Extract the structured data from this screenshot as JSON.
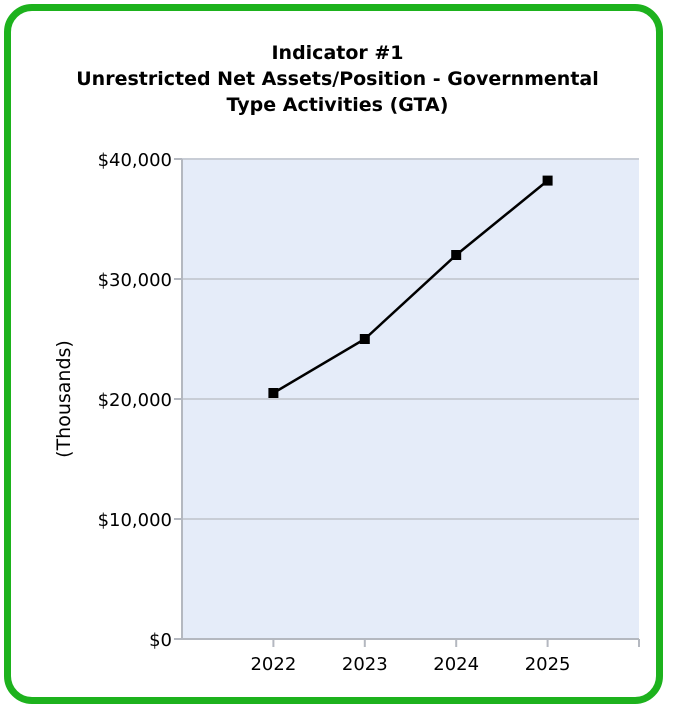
{
  "chart_data": {
    "type": "line",
    "title_lines": [
      "Indicator #1",
      "Unrestricted Net Assets/Position - Governmental",
      "Type Activities (GTA)"
    ],
    "xlabel": "",
    "ylabel": "(Thousands)",
    "categories": [
      "2022",
      "2023",
      "2024",
      "2025"
    ],
    "series": [
      {
        "values": [
          20500,
          25000,
          32000,
          38200
        ]
      }
    ],
    "ylim": [
      0,
      40000
    ],
    "yticks": [
      0,
      10000,
      20000,
      30000,
      40000
    ],
    "ytick_labels": [
      "$0",
      "$10,000",
      "$20,000",
      "$30,000",
      "$40,000"
    ],
    "grid": true,
    "plot_background": "#e5ecf9",
    "line_color": "#000000",
    "frame_color": "#1db21d"
  }
}
